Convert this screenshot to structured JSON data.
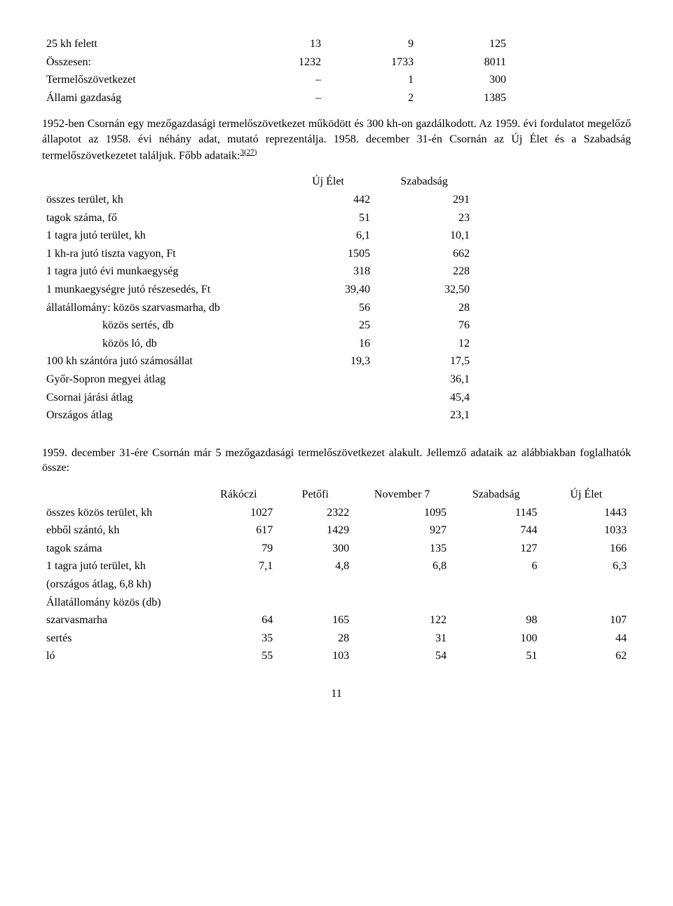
{
  "table1": {
    "rows": [
      {
        "label": "25 kh felett",
        "c1": "13",
        "c2": "9",
        "c3": "125"
      },
      {
        "label": "Összesen:",
        "c1": "1232",
        "c2": "1733",
        "c3": "8011"
      },
      {
        "label": "Termelőszövetkezet",
        "c1": "–",
        "c2": "1",
        "c3": "300"
      },
      {
        "label": "Állami gazdaság",
        "c1": "–",
        "c2": "2",
        "c3": "1385"
      }
    ]
  },
  "para1_part1": "1952-ben Csornán egy mezőgazdasági termelőszövetkezet működött és 300 kh-on gazdálkodott. Az 1959. évi fordulatot megelőző állapotot az 1958. évi néhány adat, mutató reprezentálja. 1958. december 31-én Csornán az Új Élet és a Szabadság termelőszövetkezetet találjuk. Főbb adataik:",
  "para1_sup": "3(27)",
  "table2": {
    "header": {
      "c2": "Új Élet",
      "c3": "Szabadság"
    },
    "rows": [
      {
        "label": "összes terület, kh",
        "c2": "442",
        "c3": "291"
      },
      {
        "label": "tagok száma, fő",
        "c2": "51",
        "c3": "23"
      },
      {
        "label": "1 tagra jutó terület, kh",
        "c2": "6,1",
        "c3": "10,1"
      },
      {
        "label": "1 kh-ra jutó tiszta vagyon, Ft",
        "c2": "1505",
        "c3": "662"
      },
      {
        "label": "1 tagra jutó évi munkaegység",
        "c2": "318",
        "c3": "228"
      },
      {
        "label": "1 munkaegységre jutó részesedés, Ft",
        "c2": "39,40",
        "c3": "32,50"
      },
      {
        "label": "állatállomány: közös szarvasmarha, db",
        "c2": "56",
        "c3": "28"
      },
      {
        "label": "                    közös sertés, db",
        "c2": "25",
        "c3": "76"
      },
      {
        "label": "                    közös ló, db",
        "c2": "16",
        "c3": "12"
      },
      {
        "label": "100 kh szántóra jutó számosállat",
        "c2": "19,3",
        "c3": "17,5"
      },
      {
        "label": "Győr-Sopron megyei átlag",
        "c2": "",
        "c3": "36,1"
      },
      {
        "label": "Csornai járási átlag",
        "c2": "",
        "c3": "45,4"
      },
      {
        "label": "Országos átlag",
        "c2": "",
        "c3": "23,1"
      }
    ]
  },
  "para2": "1959. december 31-ére Csornán már 5 mezőgazdasági termelőszövetkezet alakult. Jellemző adataik az alábbiakban foglalhatók össze:",
  "table3": {
    "header": {
      "c2": "Rákóczi",
      "c3": "Petőfi",
      "c4": "November 7",
      "c5": "Szabadság",
      "c6": "Új Élet"
    },
    "rows": [
      {
        "label": "összes közös terület, kh",
        "c2": "1027",
        "c3": "2322",
        "c4": "1095",
        "c5": "1145",
        "c6": "1443"
      },
      {
        "label": "ebből szántó, kh",
        "c2": "617",
        "c3": "1429",
        "c4": "927",
        "c5": "744",
        "c6": "1033"
      },
      {
        "label": "tagok száma",
        "c2": "79",
        "c3": "300",
        "c4": "135",
        "c5": "127",
        "c6": "166"
      },
      {
        "label": "1 tagra jutó terület, kh",
        "c2": "7,1",
        "c3": "4,8",
        "c4": "6,8",
        "c5": "6",
        "c6": "6,3"
      },
      {
        "label": "(országos átlag, 6,8 kh)",
        "c2": "",
        "c3": "",
        "c4": "",
        "c5": "",
        "c6": ""
      },
      {
        "label": "Állatállomány közös (db)",
        "c2": "",
        "c3": "",
        "c4": "",
        "c5": "",
        "c6": ""
      },
      {
        "label": "szarvasmarha",
        "c2": "64",
        "c3": "165",
        "c4": "122",
        "c5": "98",
        "c6": "107"
      },
      {
        "label": "sertés",
        "c2": "35",
        "c3": "28",
        "c4": "31",
        "c5": "100",
        "c6": "44"
      },
      {
        "label": "ló",
        "c2": "55",
        "c3": "103",
        "c4": "54",
        "c5": "51",
        "c6": "62"
      }
    ]
  },
  "pagenum": "11"
}
